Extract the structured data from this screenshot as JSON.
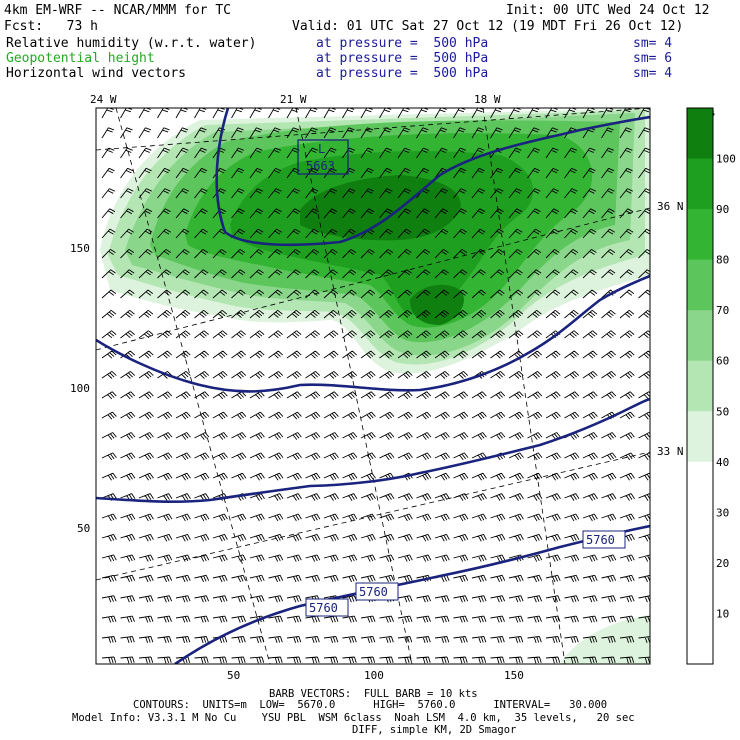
{
  "header": {
    "model": "4km EM-WRF -- NCAR/MMM for TC",
    "init": "Init: 00 UTC Wed 24 Oct 12",
    "fcst": "Fcst:   73 h",
    "valid": "Valid: 01 UTC Sat 27 Oct 12 (19 MDT Fri 26 Oct 12)"
  },
  "fields": [
    {
      "name": "Relative humidity (w.r.t. water)",
      "pressure": "at pressure =  500 hPa",
      "sm": "sm= 4",
      "color": "#000000"
    },
    {
      "name": "Geopotential height",
      "pressure": "at pressure =  500 hPa",
      "sm": "sm= 6",
      "color": "#22aa22"
    },
    {
      "name": "Horizontal wind vectors",
      "pressure": "at pressure =  500 hPa",
      "sm": "sm= 4",
      "color": "#000000"
    }
  ],
  "map": {
    "lon_labels": [
      "24 W",
      "21 W",
      "18 W"
    ],
    "lat_labels": [
      "36 N",
      "33 N"
    ],
    "x_ticks": [
      "50",
      "100",
      "150"
    ],
    "y_ticks": [
      "150",
      "100",
      "50"
    ],
    "low_label": "L",
    "low_value": "5663",
    "contour_labels": [
      "5760",
      "5760",
      "5760"
    ],
    "contour_color": "#1a237e",
    "humidity_colors": [
      "#ffffff",
      "#ddf3dd",
      "#b3e6b3",
      "#8ad68a",
      "#5cc65c",
      "#33b533",
      "#1f9f1f",
      "#0f7f0f"
    ]
  },
  "colorbar": {
    "unit": "%",
    "levels": [
      "100",
      "90",
      "80",
      "70",
      "60",
      "50",
      "40",
      "30",
      "20",
      "10"
    ],
    "colors": [
      "#0f7f0f",
      "#1f9f1f",
      "#33b533",
      "#5cc65c",
      "#8ad68a",
      "#b3e6b3",
      "#ddf3dd",
      "#ffffff",
      "#ffffff",
      "#ffffff"
    ]
  },
  "footer": {
    "barb": "BARB VECTORS:  FULL BARB = 10 kts",
    "contours": "CONTOURS:  UNITS=m  LOW=  5670.0      HIGH=  5760.0      INTERVAL=   30.000",
    "model_info": "Model Info: V3.3.1 M No Cu    YSU PBL  WSM 6class  Noah LSM  4.0 km,  35 levels,   20 sec",
    "diff": "DIFF, simple KM, 2D Smagor"
  }
}
